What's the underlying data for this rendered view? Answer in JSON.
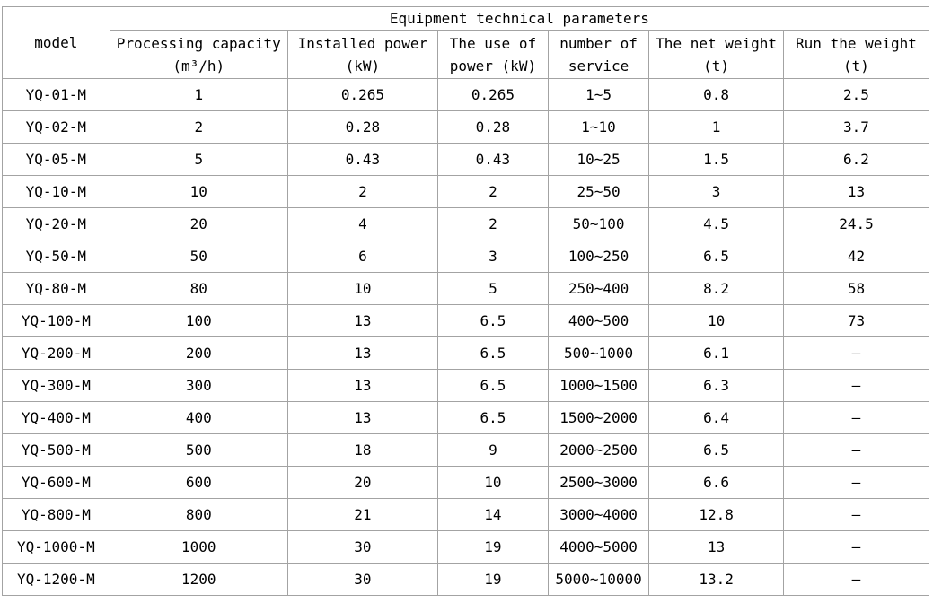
{
  "table": {
    "title": "Equipment technical parameters",
    "model_header": "model",
    "columns": [
      {
        "line1": "Processing capacity",
        "line2": "(m³/h)"
      },
      {
        "line1": "Installed power",
        "line2": "(kW)"
      },
      {
        "line1": "The use of",
        "line2": "power (kW)"
      },
      {
        "line1": "number of",
        "line2": "service"
      },
      {
        "line1": "The net weight",
        "line2": "(t)"
      },
      {
        "line1": "Run the weight",
        "line2": "(t)"
      }
    ],
    "rows": [
      [
        "YQ-01-M",
        "1",
        "0.265",
        "0.265",
        "1~5",
        "0.8",
        "2.5"
      ],
      [
        "YQ-02-M",
        "2",
        "0.28",
        "0.28",
        "1~10",
        "1",
        "3.7"
      ],
      [
        "YQ-05-M",
        "5",
        "0.43",
        "0.43",
        "10~25",
        "1.5",
        "6.2"
      ],
      [
        "YQ-10-M",
        "10",
        "2",
        "2",
        "25~50",
        "3",
        "13"
      ],
      [
        "YQ-20-M",
        "20",
        "4",
        "2",
        "50~100",
        "4.5",
        "24.5"
      ],
      [
        "YQ-50-M",
        "50",
        "6",
        "3",
        "100~250",
        "6.5",
        "42"
      ],
      [
        "YQ-80-M",
        "80",
        "10",
        "5",
        "250~400",
        "8.2",
        "58"
      ],
      [
        "YQ-100-M",
        "100",
        "13",
        "6.5",
        "400~500",
        "10",
        "73"
      ],
      [
        "YQ-200-M",
        "200",
        "13",
        "6.5",
        "500~1000",
        "6.1",
        "—"
      ],
      [
        "YQ-300-M",
        "300",
        "13",
        "6.5",
        "1000~1500",
        "6.3",
        "—"
      ],
      [
        "YQ-400-M",
        "400",
        "13",
        "6.5",
        "1500~2000",
        "6.4",
        "—"
      ],
      [
        "YQ-500-M",
        "500",
        "18",
        "9",
        "2000~2500",
        "6.5",
        "—"
      ],
      [
        "YQ-600-M",
        "600",
        "20",
        "10",
        "2500~3000",
        "6.6",
        "—"
      ],
      [
        "YQ-800-M",
        "800",
        "21",
        "14",
        "3000~4000",
        "12.8",
        "—"
      ],
      [
        "YQ-1000-M",
        "1000",
        "30",
        "19",
        "4000~5000",
        "13",
        "—"
      ],
      [
        "YQ-1200-M",
        "1200",
        "30",
        "19",
        "5000~10000",
        "13.2",
        "—"
      ]
    ]
  },
  "colors": {
    "border": "#a3a3a3",
    "text": "#000000",
    "background": "#ffffff"
  }
}
